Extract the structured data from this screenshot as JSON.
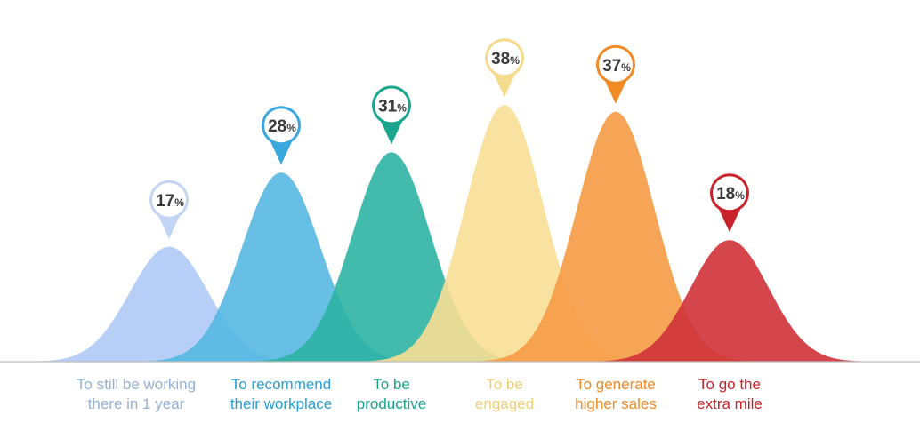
{
  "chart_data": {
    "type": "area",
    "title": "",
    "xlabel": "",
    "ylabel": "",
    "ylim": [
      0,
      40
    ],
    "grid": false,
    "legend": "none",
    "unit": "%",
    "categories": [
      "To still be working there in 1 year",
      "To recommend their workplace",
      "To be productive",
      "To be engaged",
      "To generate higher sales",
      "To go the extra mile"
    ],
    "label_lines": [
      [
        "To still be working",
        "there in 1 year"
      ],
      [
        "To recommend",
        "their workplace"
      ],
      [
        "To be",
        "productive"
      ],
      [
        "To be",
        "engaged"
      ],
      [
        "To generate",
        "higher sales"
      ],
      [
        "To go the",
        "extra mile"
      ]
    ],
    "values": [
      17,
      28,
      31,
      38,
      37,
      18
    ],
    "colors": {
      "fills": [
        "#b3ccf5",
        "#57b8e2",
        "#2db3a3",
        "#f8de95",
        "#f59b45",
        "#cf3238"
      ],
      "pins": [
        "#c3d5f5",
        "#3aa7dd",
        "#1aa58f",
        "#f5dc8d",
        "#f28a26",
        "#c8232a"
      ],
      "labels": [
        "#95b2d6",
        "#2a9fd6",
        "#1aa58f",
        "#f2cf77",
        "#f28a26",
        "#c8232a"
      ],
      "baseline": "#bdbdbd"
    }
  }
}
